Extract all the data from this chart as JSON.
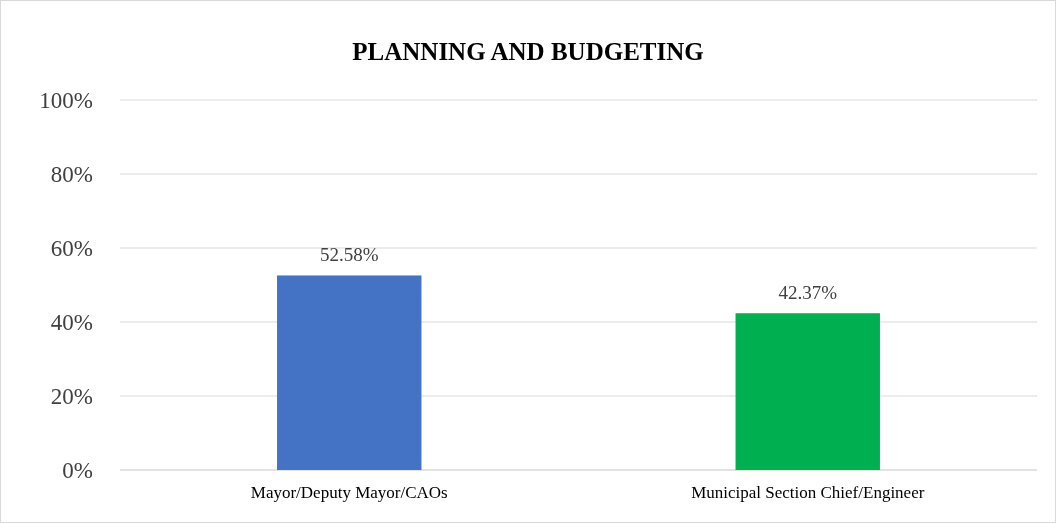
{
  "chart_data": {
    "type": "bar",
    "title": "PLANNING AND BUDGETING",
    "categories": [
      "Mayor/Deputy Mayor/CAOs",
      "Municipal Section Chief/Engineer"
    ],
    "values": [
      52.58,
      42.37
    ],
    "colors": [
      "#4472c4",
      "#00b050"
    ],
    "value_labels": [
      "52.58%",
      "42.37%"
    ],
    "ylim": [
      0,
      100
    ],
    "yticks": [
      {
        "value": 0,
        "label": "0%"
      },
      {
        "value": 20,
        "label": "20%"
      },
      {
        "value": 40,
        "label": "40%"
      },
      {
        "value": 60,
        "label": "60%"
      },
      {
        "value": 80,
        "label": "80%"
      },
      {
        "value": 100,
        "label": "100%"
      }
    ],
    "grid": "y"
  }
}
